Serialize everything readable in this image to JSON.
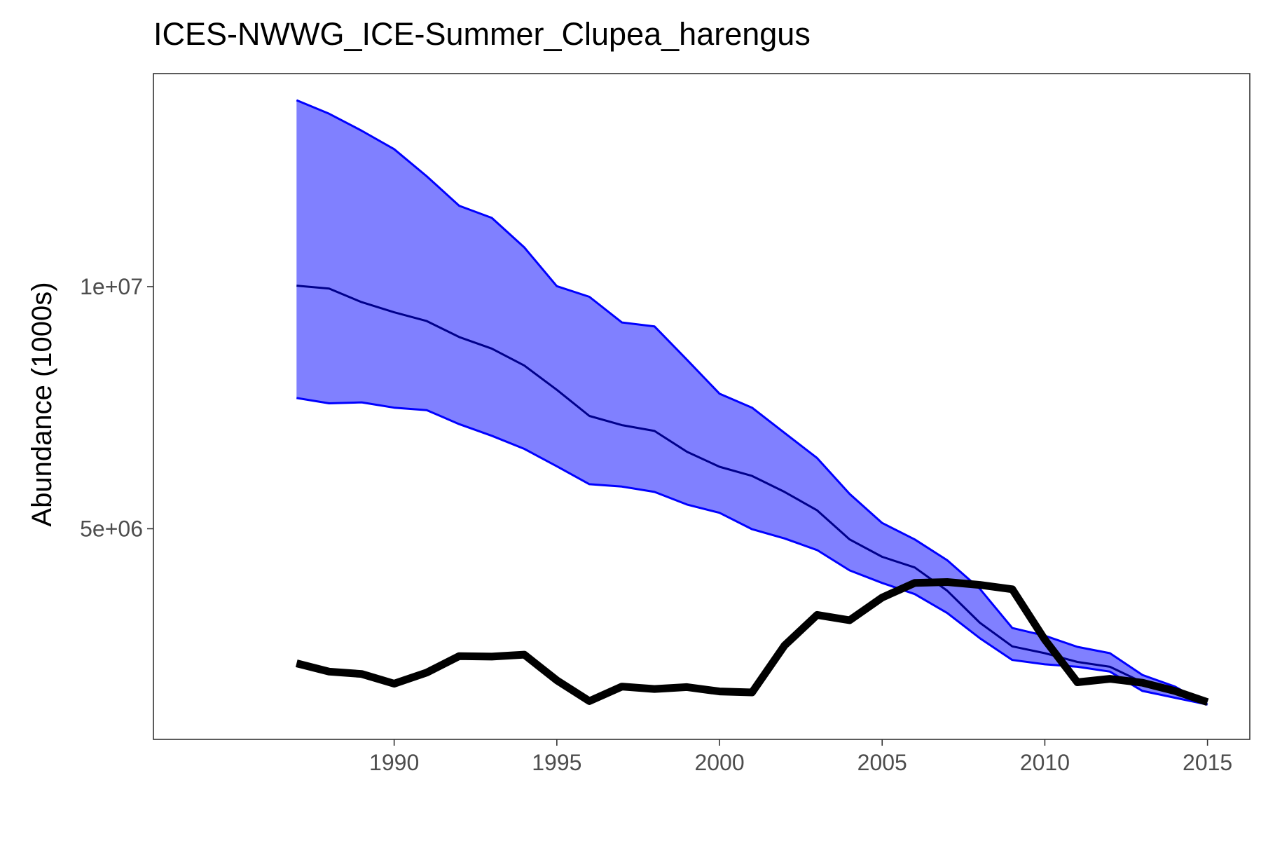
{
  "chart_data": {
    "type": "line",
    "title": "ICES-NWWG_ICE-Summer_Clupea_harengus",
    "xlabel": "",
    "ylabel": "Abundance (1000s)",
    "x": [
      1987,
      1988,
      1989,
      1990,
      1991,
      1992,
      1993,
      1994,
      1995,
      1996,
      1997,
      1998,
      1999,
      2000,
      2001,
      2002,
      2003,
      2004,
      2005,
      2006,
      2007,
      2008,
      2009,
      2010,
      2011,
      2012,
      2013,
      2014,
      2015
    ],
    "xlim": [
      1982.6,
      2016.3
    ],
    "ylim": [
      650000,
      14400000
    ],
    "x_ticks": [
      1990,
      1995,
      2000,
      2005,
      2010,
      2015
    ],
    "x_tick_labels": [
      "1990",
      "1995",
      "2000",
      "2005",
      "2010",
      "2015"
    ],
    "y_ticks": [
      5000000,
      10000000
    ],
    "y_tick_labels": [
      "5e+06",
      "1e+07"
    ],
    "grid": false,
    "series": [
      {
        "role": "band_upper",
        "color": "#0000ff",
        "values": [
          13850000,
          13570000,
          13220000,
          12840000,
          12280000,
          11670000,
          11420000,
          10810000,
          10010000,
          9790000,
          9260000,
          9180000,
          8490000,
          7790000,
          7500000,
          6980000,
          6460000,
          5720000,
          5120000,
          4780000,
          4350000,
          3760000,
          2950000,
          2790000,
          2560000,
          2430000,
          1980000,
          1740000,
          1370000
        ]
      },
      {
        "role": "band_mid",
        "color": "#00008b",
        "values": [
          10020000,
          9960000,
          9680000,
          9470000,
          9290000,
          8960000,
          8720000,
          8370000,
          7870000,
          7330000,
          7140000,
          7020000,
          6590000,
          6280000,
          6090000,
          5760000,
          5380000,
          4780000,
          4420000,
          4200000,
          3720000,
          3060000,
          2570000,
          2430000,
          2250000,
          2150000,
          1830000,
          1650000,
          1370000
        ]
      },
      {
        "role": "band_lower",
        "color": "#0000ff",
        "values": [
          7700000,
          7590000,
          7610000,
          7500000,
          7450000,
          7160000,
          6920000,
          6650000,
          6290000,
          5920000,
          5870000,
          5760000,
          5500000,
          5330000,
          4990000,
          4800000,
          4560000,
          4140000,
          3880000,
          3650000,
          3260000,
          2740000,
          2290000,
          2200000,
          2150000,
          2050000,
          1650000,
          1510000,
          1370000
        ]
      },
      {
        "role": "observed",
        "color": "#000000",
        "values": [
          2220000,
          2050000,
          2000000,
          1800000,
          2030000,
          2370000,
          2360000,
          2400000,
          1870000,
          1440000,
          1740000,
          1690000,
          1730000,
          1640000,
          1620000,
          2590000,
          3220000,
          3110000,
          3580000,
          3880000,
          3900000,
          3840000,
          3750000,
          2710000,
          1830000,
          1900000,
          1820000,
          1650000,
          1420000
        ]
      }
    ],
    "band_fill_color": "#8080ff"
  }
}
